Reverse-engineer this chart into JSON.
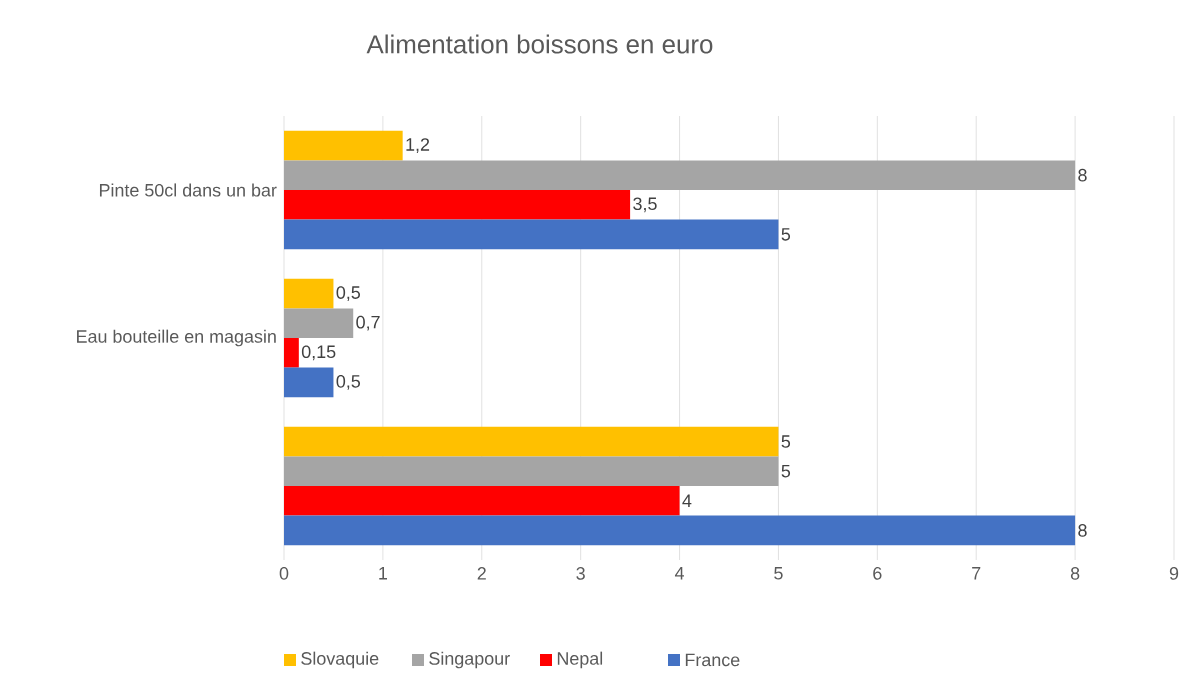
{
  "chart_data": {
    "type": "bar",
    "orientation": "horizontal",
    "title": "Alimentation boissons en euro",
    "categories": [
      "Pinte 50cl dans un bar",
      "Eau bouteille en magasin",
      null
    ],
    "series": [
      {
        "name": "Slovaquie",
        "color": "#ffc000",
        "values": [
          1.2,
          0.5,
          5
        ],
        "value_labels": [
          "1,2",
          "0,5",
          "5"
        ]
      },
      {
        "name": "Singapour",
        "color": "#a5a5a5",
        "values": [
          8,
          0.7,
          5
        ],
        "value_labels": [
          "8",
          "0,7",
          "5"
        ]
      },
      {
        "name": "Nepal",
        "color": "#ff0000",
        "values": [
          3.5,
          0.15,
          4
        ],
        "value_labels": [
          "3,5",
          "0,15",
          "4"
        ]
      },
      {
        "name": "France",
        "color": "#4472c4",
        "values": [
          5,
          0.5,
          8
        ],
        "value_labels": [
          "5",
          "0,5",
          "8"
        ]
      }
    ],
    "xlim": [
      0,
      9
    ],
    "xticks": [
      0,
      1,
      2,
      3,
      4,
      5,
      6,
      7,
      8,
      9
    ],
    "grid": "x",
    "legend": "bottom"
  }
}
